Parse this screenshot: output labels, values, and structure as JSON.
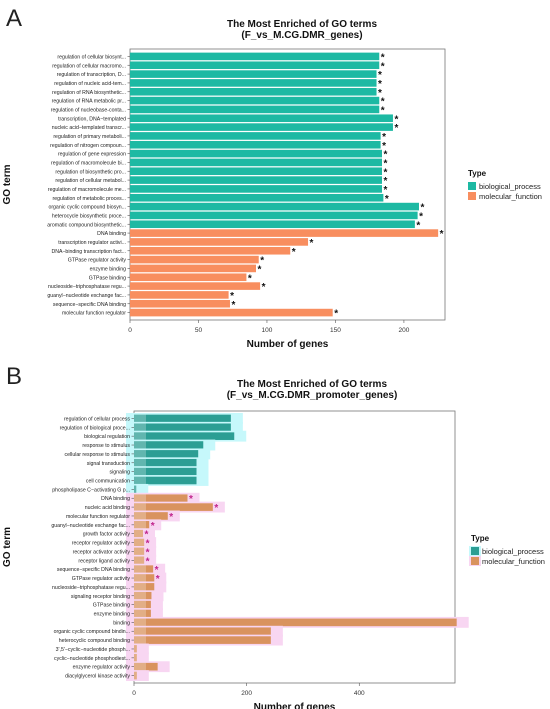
{
  "panels": [
    {
      "letter": "A",
      "title_line1": "The Most Enriched of GO terms",
      "title_line2": "(F_vs_M.CG.DMR_genes)"
    },
    {
      "letter": "B",
      "title_line1": "The Most Enriched of GO terms",
      "title_line2": "(F_vs_M.CG.DMR_promoter_genes)"
    }
  ],
  "colors": {
    "biological_process_A": "#1db9a3",
    "molecular_function_A": "#f88e5f",
    "biological_process_B": "#2c9e94",
    "molecular_function_B": "#d9935e",
    "highlight_bp_B": "#c6f8fb",
    "highlight_mf_B": "#f8d6f2",
    "asterisk_A": "#111111",
    "asterisk_B": "#c0238c"
  },
  "chart_data": [
    {
      "type": "bar",
      "orientation": "horizontal",
      "title": "The Most Enriched of GO terms (F_vs_M.CG.DMR_genes)",
      "xlabel": "Number of genes",
      "ylabel": "GO term",
      "xlim": [
        0,
        230
      ],
      "xticks": [
        0,
        50,
        100,
        150,
        200
      ],
      "legend_title": "Type",
      "legend": [
        "biological_process",
        "molecular_function"
      ],
      "legend_position": "right",
      "grid": false,
      "bars": [
        {
          "label": "regulation of cellular biosynt...",
          "value": 182,
          "type": "biological_process",
          "sig": "*"
        },
        {
          "label": "regulation of cellular macromo...",
          "value": 182,
          "type": "biological_process",
          "sig": "*"
        },
        {
          "label": "regulation of transcription, D...",
          "value": 180,
          "type": "biological_process",
          "sig": "*"
        },
        {
          "label": "regulation of nucleic acid-tem...",
          "value": 180,
          "type": "biological_process",
          "sig": "*"
        },
        {
          "label": "regulation of RNA biosynthetic...",
          "value": 180,
          "type": "biological_process",
          "sig": "*"
        },
        {
          "label": "regulation of RNA metabolic pr...",
          "value": 182,
          "type": "biological_process",
          "sig": "*"
        },
        {
          "label": "regulation of nucleobase-conta...",
          "value": 182,
          "type": "biological_process",
          "sig": "*"
        },
        {
          "label": "transcription, DNA−templated",
          "value": 192,
          "type": "biological_process",
          "sig": "*"
        },
        {
          "label": "nucleic acid−templated transcr...",
          "value": 192,
          "type": "biological_process",
          "sig": "*"
        },
        {
          "label": "regulation of primary metaboli...",
          "value": 183,
          "type": "biological_process",
          "sig": "*"
        },
        {
          "label": "regulation of nitrogen compoun...",
          "value": 183,
          "type": "biological_process",
          "sig": "*"
        },
        {
          "label": "regulation of gene expression",
          "value": 184,
          "type": "biological_process",
          "sig": "*"
        },
        {
          "label": "regulation of macromolecule bi...",
          "value": 184,
          "type": "biological_process",
          "sig": "*"
        },
        {
          "label": "regulation of biosynthetic pro...",
          "value": 184,
          "type": "biological_process",
          "sig": "*"
        },
        {
          "label": "regulation of cellular metabol...",
          "value": 184,
          "type": "biological_process",
          "sig": "*"
        },
        {
          "label": "regulation of macromolecule me...",
          "value": 184,
          "type": "biological_process",
          "sig": "*"
        },
        {
          "label": "regulation of metabolic proces...",
          "value": 185,
          "type": "biological_process",
          "sig": "*"
        },
        {
          "label": "organic cyclic compound biosyn...",
          "value": 211,
          "type": "biological_process",
          "sig": "*"
        },
        {
          "label": "heterocycle biosynthetic proce...",
          "value": 210,
          "type": "biological_process",
          "sig": "*"
        },
        {
          "label": "aromatic compound biosynthetic...",
          "value": 208,
          "type": "biological_process",
          "sig": "*"
        },
        {
          "label": "DNA binding",
          "value": 225,
          "type": "molecular_function",
          "sig": "*"
        },
        {
          "label": "transcription regulator activi...",
          "value": 130,
          "type": "molecular_function",
          "sig": "*"
        },
        {
          "label": "DNA−binding transcription fact...",
          "value": 117,
          "type": "molecular_function",
          "sig": "*"
        },
        {
          "label": "GTPase regulator activity",
          "value": 94,
          "type": "molecular_function",
          "sig": "*"
        },
        {
          "label": "enzyme binding",
          "value": 92,
          "type": "molecular_function",
          "sig": "*"
        },
        {
          "label": "GTPase binding",
          "value": 85,
          "type": "molecular_function",
          "sig": "*"
        },
        {
          "label": "nucleoside−triphosphatase regu...",
          "value": 95,
          "type": "molecular_function",
          "sig": "*"
        },
        {
          "label": "guanyl−nucleotide exchange fac...",
          "value": 72,
          "type": "molecular_function",
          "sig": "*"
        },
        {
          "label": "sequence−specific DNA binding",
          "value": 73,
          "type": "molecular_function",
          "sig": "*"
        },
        {
          "label": "molecular function regulator",
          "value": 148,
          "type": "molecular_function",
          "sig": "*"
        }
      ]
    },
    {
      "type": "bar",
      "orientation": "horizontal",
      "title": "The Most Enriched of GO terms (F_vs_M.CG.DMR_promoter_genes)",
      "xlabel": "Number of genes",
      "ylabel": "GO term",
      "xlim": [
        0,
        570
      ],
      "xticks": [
        0,
        200,
        400
      ],
      "legend_title": "Type",
      "legend": [
        "biological_process",
        "molecular_function"
      ],
      "legend_position": "right",
      "grid": false,
      "bars": [
        {
          "label": "regulation of cellular process",
          "value": 172,
          "type": "biological_process",
          "sig": ""
        },
        {
          "label": "regulation of biological proce...",
          "value": 172,
          "type": "biological_process",
          "sig": ""
        },
        {
          "label": "biological regulation",
          "value": 178,
          "type": "biological_process",
          "sig": ""
        },
        {
          "label": "response to stimulus",
          "value": 123,
          "type": "biological_process",
          "sig": ""
        },
        {
          "label": "cellular response to stimulus",
          "value": 114,
          "type": "biological_process",
          "sig": ""
        },
        {
          "label": "signal transduction",
          "value": 111,
          "type": "biological_process",
          "sig": ""
        },
        {
          "label": "signaling",
          "value": 111,
          "type": "biological_process",
          "sig": ""
        },
        {
          "label": "cell communication",
          "value": 111,
          "type": "biological_process",
          "sig": ""
        },
        {
          "label": "phospholipase C−activating G p...",
          "value": 4,
          "type": "biological_process",
          "sig": ""
        },
        {
          "label": "DNA binding",
          "value": 95,
          "type": "molecular_function",
          "sig": "*"
        },
        {
          "label": "nucleic acid binding",
          "value": 140,
          "type": "molecular_function",
          "sig": "*"
        },
        {
          "label": "molecular function regulator",
          "value": 60,
          "type": "molecular_function",
          "sig": "*"
        },
        {
          "label": "guanyl−nucleotide exchange fac...",
          "value": 27,
          "type": "molecular_function",
          "sig": "*"
        },
        {
          "label": "growth factor activity",
          "value": 16,
          "type": "molecular_function",
          "sig": "*"
        },
        {
          "label": "receptor regulator activity",
          "value": 18,
          "type": "molecular_function",
          "sig": "*"
        },
        {
          "label": "receptor activator activity",
          "value": 18,
          "type": "molecular_function",
          "sig": "*"
        },
        {
          "label": "receptor ligand activity",
          "value": 18,
          "type": "molecular_function",
          "sig": "*"
        },
        {
          "label": "sequence−specific DNA binding",
          "value": 34,
          "type": "molecular_function",
          "sig": "*"
        },
        {
          "label": "GTPase regulator activity",
          "value": 36,
          "type": "molecular_function",
          "sig": "*"
        },
        {
          "label": "nucleoside−triphosphatase regu...",
          "value": 36,
          "type": "molecular_function",
          "sig": ""
        },
        {
          "label": "signaling receptor binding",
          "value": 31,
          "type": "molecular_function",
          "sig": ""
        },
        {
          "label": "GTPase binding",
          "value": 30,
          "type": "molecular_function",
          "sig": ""
        },
        {
          "label": "enzyme binding",
          "value": 30,
          "type": "molecular_function",
          "sig": ""
        },
        {
          "label": "binding",
          "value": 573,
          "type": "molecular_function",
          "sig": ""
        },
        {
          "label": "organic cyclic compound bindin...",
          "value": 243,
          "type": "molecular_function",
          "sig": ""
        },
        {
          "label": "heterocyclic compound binding",
          "value": 243,
          "type": "molecular_function",
          "sig": ""
        },
        {
          "label": "3',5'−cyclic−nucleotide phosph...",
          "value": 5,
          "type": "molecular_function",
          "sig": ""
        },
        {
          "label": "cyclic−nucleotide phosphodiest...",
          "value": 5,
          "type": "molecular_function",
          "sig": ""
        },
        {
          "label": "enzyme regulator activity",
          "value": 42,
          "type": "molecular_function",
          "sig": ""
        },
        {
          "label": "diacylglycerol kinase activity",
          "value": 5,
          "type": "molecular_function",
          "sig": ""
        }
      ]
    }
  ]
}
